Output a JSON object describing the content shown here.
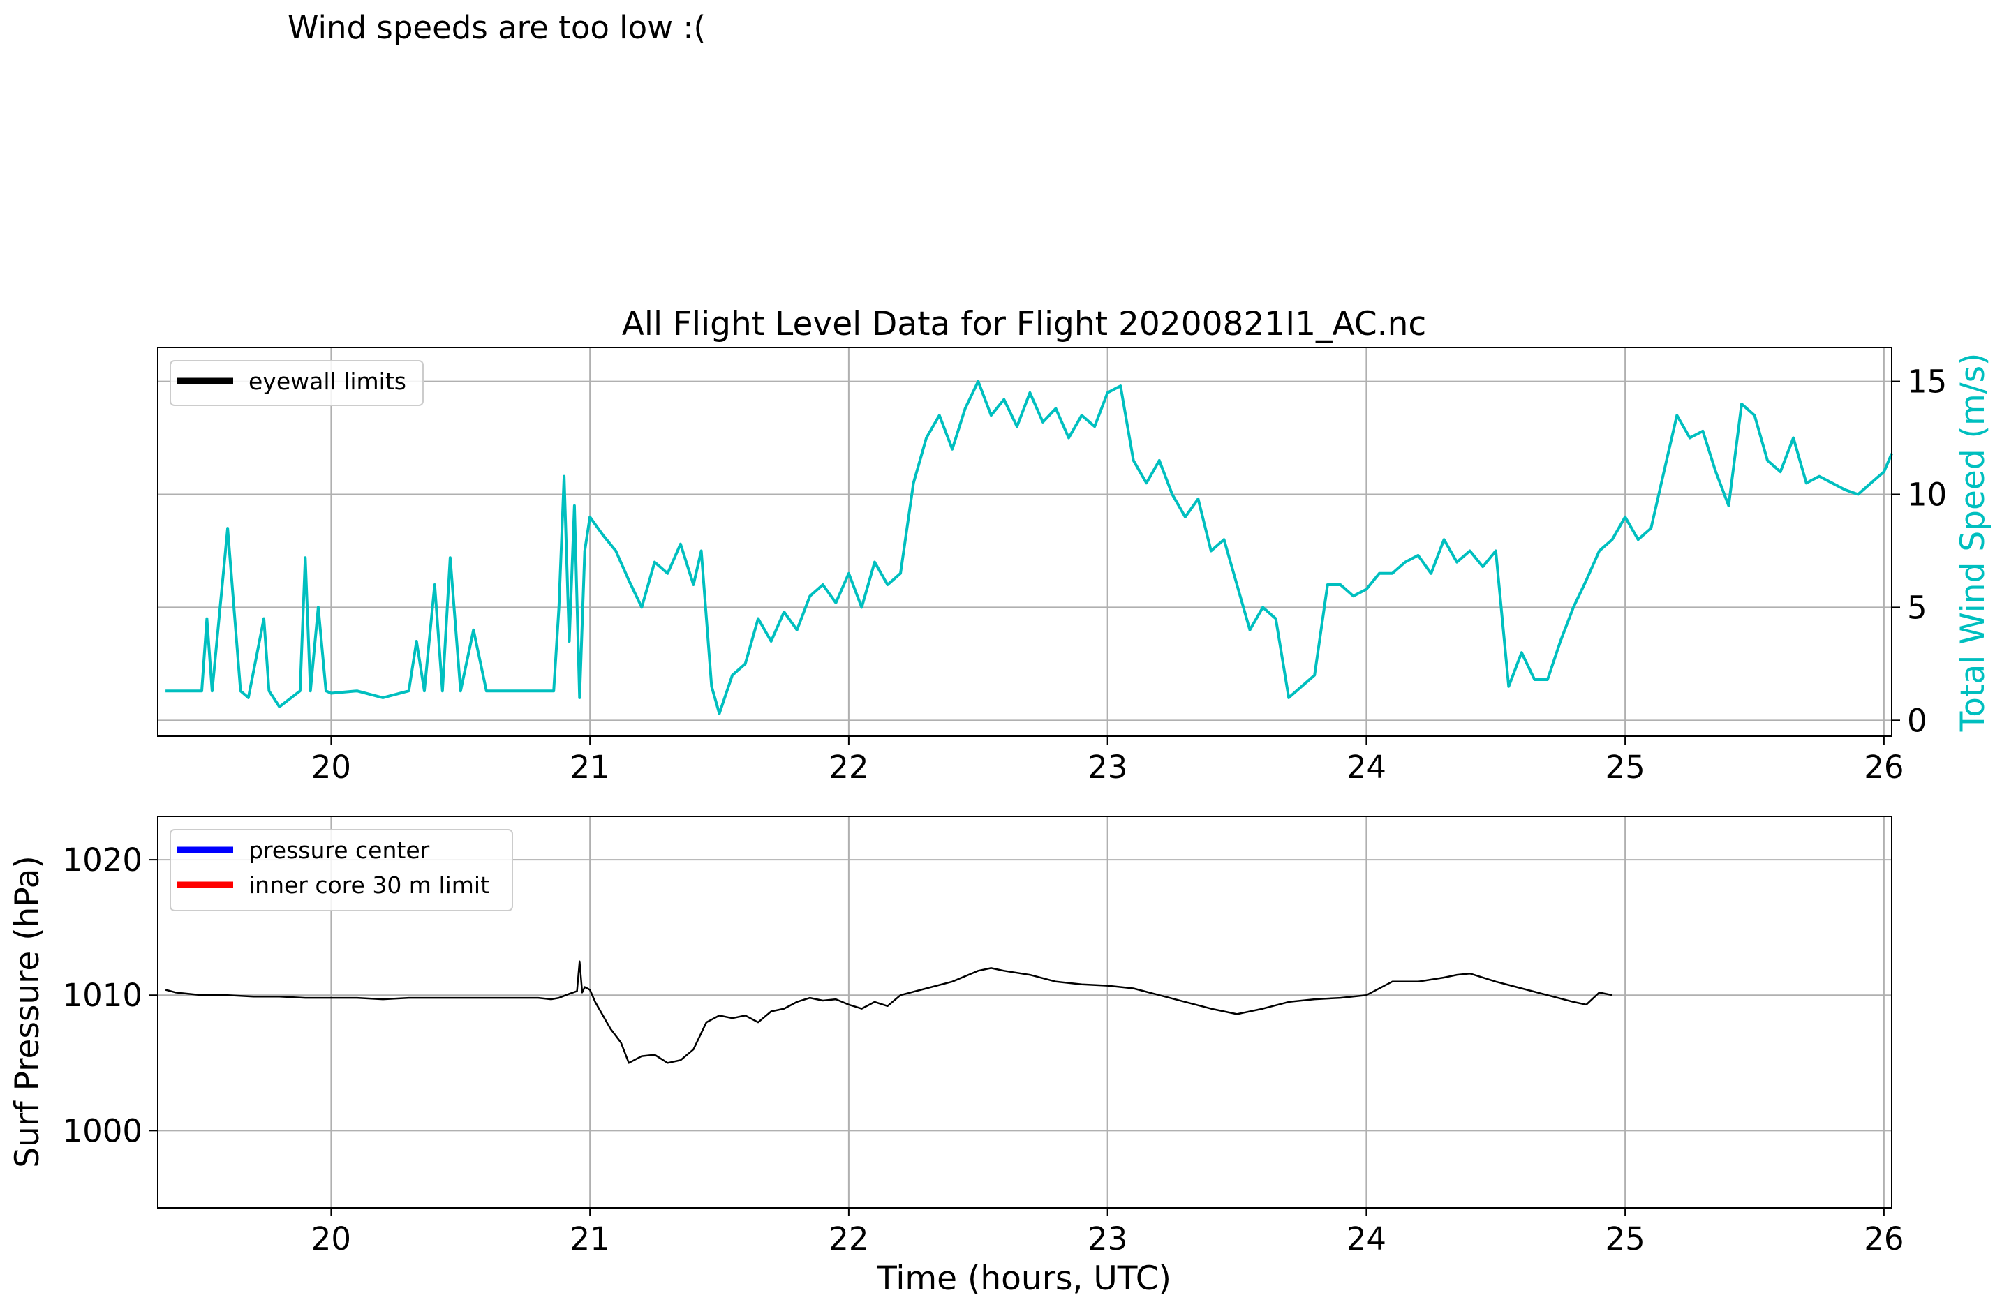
{
  "figure_note": "Wind speeds are too low :(",
  "colors": {
    "wind": "#00bfbf",
    "pressure": "#000000",
    "eyewall": "#000000",
    "pressure_center": "#0000ff",
    "inner_core": "#ff0000",
    "grid": "#b0b0b0"
  },
  "chart_data": [
    {
      "type": "line",
      "title": "All Flight Level Data for Flight 20200821I1_AC.nc",
      "xlabel": "",
      "ylabel": "Total Wind Speed (m/s)",
      "y_axis_side": "right",
      "xlim": [
        19.33,
        26.03
      ],
      "ylim": [
        -0.7,
        16.5
      ],
      "x_ticks": [
        20,
        21,
        22,
        23,
        24,
        25,
        26
      ],
      "y_ticks": [
        0,
        5,
        10,
        15
      ],
      "grid": true,
      "legend": {
        "placement": "upper-left",
        "entries": [
          "eyewall limits"
        ]
      },
      "series": [
        {
          "name": "",
          "x": [
            19.36,
            19.5,
            19.52,
            19.54,
            19.6,
            19.65,
            19.68,
            19.74,
            19.76,
            19.8,
            19.88,
            19.9,
            19.92,
            19.95,
            19.98,
            20.0,
            20.1,
            20.2,
            20.3,
            20.33,
            20.36,
            20.4,
            20.43,
            20.46,
            20.5,
            20.55,
            20.6,
            20.7,
            20.8,
            20.86,
            20.88,
            20.9,
            20.92,
            20.94,
            20.96,
            20.98,
            21.0,
            21.05,
            21.1,
            21.15,
            21.2,
            21.25,
            21.3,
            21.35,
            21.4,
            21.43,
            21.47,
            21.5,
            21.55,
            21.6,
            21.65,
            21.7,
            21.75,
            21.8,
            21.85,
            21.9,
            21.95,
            22.0,
            22.05,
            22.1,
            22.15,
            22.2,
            22.25,
            22.3,
            22.35,
            22.4,
            22.45,
            22.5,
            22.55,
            22.6,
            22.65,
            22.7,
            22.75,
            22.8,
            22.85,
            22.9,
            22.95,
            23.0,
            23.05,
            23.1,
            23.15,
            23.2,
            23.25,
            23.3,
            23.35,
            23.4,
            23.45,
            23.5,
            23.55,
            23.6,
            23.65,
            23.7,
            23.75,
            23.8,
            23.85,
            23.9,
            23.95,
            24.0,
            24.05,
            24.1,
            24.15,
            24.2,
            24.25,
            24.3,
            24.35,
            24.4,
            24.45,
            24.5,
            24.55,
            24.6,
            24.65,
            24.7,
            24.75,
            24.8,
            24.85,
            24.9,
            24.95,
            25.0,
            25.05,
            25.1,
            25.15,
            25.2,
            25.25,
            25.3,
            25.35,
            25.4,
            25.45,
            25.5,
            25.55,
            25.6,
            25.65,
            25.7,
            25.75,
            25.8,
            25.85,
            25.9,
            25.95,
            26.0,
            26.03
          ],
          "values": [
            1.3,
            1.3,
            4.5,
            1.3,
            8.5,
            1.3,
            1.0,
            4.5,
            1.3,
            0.6,
            1.3,
            7.2,
            1.3,
            5.0,
            1.3,
            1.2,
            1.3,
            1.0,
            1.3,
            3.5,
            1.3,
            6.0,
            1.3,
            7.2,
            1.3,
            4.0,
            1.3,
            1.3,
            1.3,
            1.3,
            5.0,
            10.8,
            3.5,
            9.5,
            1.0,
            7.5,
            9.0,
            8.2,
            7.5,
            6.2,
            5.0,
            7.0,
            6.5,
            7.8,
            6.0,
            7.5,
            1.5,
            0.3,
            2.0,
            2.5,
            4.5,
            3.5,
            4.8,
            4.0,
            5.5,
            6.0,
            5.2,
            6.5,
            5.0,
            7.0,
            6.0,
            6.5,
            10.5,
            12.5,
            13.5,
            12.0,
            13.8,
            15.0,
            13.5,
            14.2,
            13.0,
            14.5,
            13.2,
            13.8,
            12.5,
            13.5,
            13.0,
            14.5,
            14.8,
            11.5,
            10.5,
            11.5,
            10.0,
            9.0,
            9.8,
            7.5,
            8.0,
            6.0,
            4.0,
            5.0,
            4.5,
            1.0,
            1.5,
            2.0,
            6.0,
            6.0,
            5.5,
            5.8,
            6.5,
            6.5,
            7.0,
            7.3,
            6.5,
            8.0,
            7.0,
            7.5,
            6.8,
            7.5,
            1.5,
            3.0,
            1.8,
            1.8,
            3.5,
            5.0,
            6.2,
            7.5,
            8.0,
            9.0,
            8.0,
            8.5,
            11.0,
            13.5,
            12.5,
            12.8,
            11.0,
            9.5,
            14.0,
            13.5,
            11.5,
            11.0,
            12.5,
            10.5,
            10.8,
            10.5,
            10.2,
            10.0,
            10.5,
            11.0,
            11.8
          ]
        }
      ]
    },
    {
      "type": "line",
      "title": "",
      "xlabel": "Time (hours, UTC)",
      "ylabel": "Surf Pressure (hPa)",
      "y_axis_side": "left",
      "xlim": [
        19.33,
        26.03
      ],
      "ylim": [
        994.3,
        1023.2
      ],
      "x_ticks": [
        20,
        21,
        22,
        23,
        24,
        25,
        26
      ],
      "y_ticks": [
        1000,
        1010,
        1020
      ],
      "grid": true,
      "legend": {
        "placement": "upper-left",
        "entries": [
          "pressure center",
          "inner core 30 m limit"
        ]
      },
      "series": [
        {
          "name": "",
          "x": [
            19.36,
            19.4,
            19.5,
            19.6,
            19.7,
            19.8,
            19.9,
            20.0,
            20.1,
            20.2,
            20.3,
            20.4,
            20.5,
            20.6,
            20.7,
            20.8,
            20.85,
            20.88,
            20.92,
            20.95,
            20.96,
            20.97,
            20.98,
            21.0,
            21.02,
            21.05,
            21.08,
            21.1,
            21.12,
            21.15,
            21.2,
            21.25,
            21.3,
            21.35,
            21.4,
            21.45,
            21.5,
            21.55,
            21.6,
            21.65,
            21.7,
            21.75,
            21.8,
            21.85,
            21.9,
            21.95,
            22.0,
            22.05,
            22.1,
            22.15,
            22.2,
            22.3,
            22.4,
            22.5,
            22.55,
            22.6,
            22.7,
            22.8,
            22.9,
            23.0,
            23.1,
            23.2,
            23.3,
            23.4,
            23.5,
            23.6,
            23.7,
            23.8,
            23.9,
            24.0,
            24.1,
            24.2,
            24.3,
            24.35,
            24.4,
            24.5,
            24.6,
            24.7,
            24.8,
            24.85,
            24.9,
            24.95
          ],
          "values": [
            1010.4,
            1010.2,
            1010.0,
            1010.0,
            1009.9,
            1009.9,
            1009.8,
            1009.8,
            1009.8,
            1009.7,
            1009.8,
            1009.8,
            1009.8,
            1009.8,
            1009.8,
            1009.8,
            1009.7,
            1009.8,
            1010.1,
            1010.3,
            1012.5,
            1010.2,
            1010.6,
            1010.4,
            1009.5,
            1008.5,
            1007.5,
            1007.0,
            1006.5,
            1005.0,
            1005.5,
            1005.6,
            1005.0,
            1005.2,
            1006.0,
            1008.0,
            1008.5,
            1008.3,
            1008.5,
            1008.0,
            1008.8,
            1009.0,
            1009.5,
            1009.8,
            1009.6,
            1009.7,
            1009.3,
            1009.0,
            1009.5,
            1009.2,
            1010.0,
            1010.5,
            1011.0,
            1011.8,
            1012.0,
            1011.8,
            1011.5,
            1011.0,
            1010.8,
            1010.7,
            1010.5,
            1010.0,
            1009.5,
            1009.0,
            1008.6,
            1009.0,
            1009.5,
            1009.7,
            1009.8,
            1010.0,
            1011.0,
            1011.0,
            1011.3,
            1011.5,
            1011.6,
            1011.0,
            1010.5,
            1010.0,
            1009.5,
            1009.3,
            1010.2,
            1010.0
          ]
        }
      ]
    }
  ]
}
